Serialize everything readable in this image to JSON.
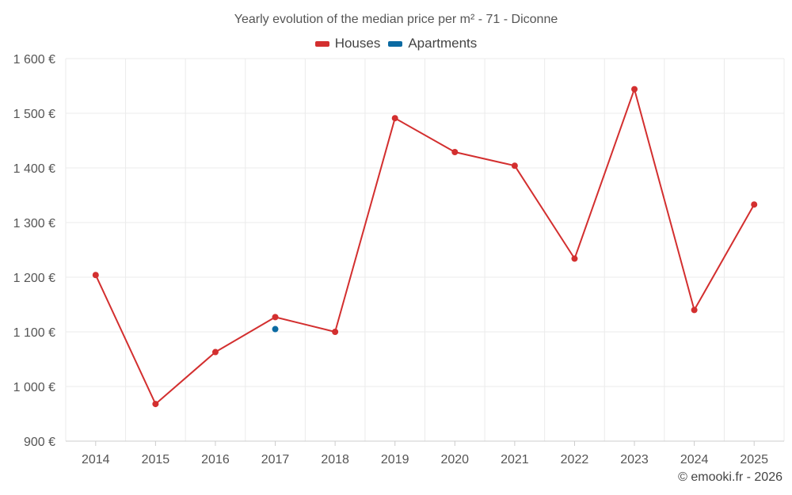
{
  "title": "Yearly evolution of the median price per m² - 71 - Diconne",
  "credit": "© emooki.fr - 2026",
  "legend": [
    {
      "name": "Houses",
      "color": "#d32f2f"
    },
    {
      "name": "Apartments",
      "color": "#0b6aa2"
    }
  ],
  "chart_data": {
    "type": "line",
    "x": [
      "2014",
      "2015",
      "2016",
      "2017",
      "2018",
      "2019",
      "2020",
      "2021",
      "2022",
      "2023",
      "2024",
      "2025"
    ],
    "series": [
      {
        "name": "Houses",
        "color": "#d32f2f",
        "values": [
          1204,
          968,
          1063,
          1127,
          1100,
          1491,
          1429,
          1404,
          1234,
          1544,
          1140,
          1333
        ]
      },
      {
        "name": "Apartments",
        "color": "#0b6aa2",
        "values": [
          null,
          null,
          null,
          1105,
          null,
          null,
          null,
          null,
          null,
          null,
          null,
          null
        ]
      }
    ],
    "yticks": [
      "900 €",
      "1 000 €",
      "1 100 €",
      "1 200 €",
      "1 300 €",
      "1 400 €",
      "1 500 €",
      "1 600 €"
    ],
    "ylim": [
      900,
      1600
    ],
    "grid": true,
    "legend_position": "top"
  }
}
